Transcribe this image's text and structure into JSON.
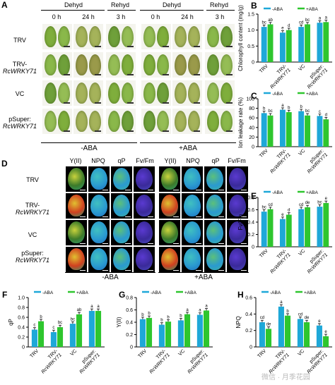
{
  "panels": {
    "A": {
      "label": "A",
      "groups": [
        "Dehyd",
        "Rehyd",
        "Dehyd",
        "Rehyd"
      ],
      "times": [
        "0 h",
        "24 h",
        "3 h",
        "0 h",
        "24 h",
        "3 h"
      ],
      "rows": [
        {
          "line1": "TRV",
          "line2": ""
        },
        {
          "line1": "TRV-",
          "line2": "RcWRKY71"
        },
        {
          "line1": "VC",
          "line2": ""
        },
        {
          "line1": "pSuper:",
          "line2": "RcWRKY71"
        }
      ],
      "conditions": [
        "-ABA",
        "+ABA"
      ]
    },
    "D": {
      "label": "D",
      "params": [
        "Y(II)",
        "NPQ",
        "qP",
        "Fv/Fm",
        "Y(II)",
        "NPQ",
        "qP",
        "Fv/Fm"
      ],
      "rows": [
        {
          "line1": "TRV",
          "line2": ""
        },
        {
          "line1": "TRV-",
          "line2": "RcWRKY71"
        },
        {
          "line1": "VC",
          "line2": ""
        },
        {
          "line1": "pSuper:",
          "line2": "RcWRKY71"
        }
      ],
      "conditions": [
        "-ABA",
        "+ABA"
      ]
    }
  },
  "legend": {
    "minus": "-ABA",
    "plus": "+ABA"
  },
  "colors": {
    "minus": "#1ea8d8",
    "plus": "#2ec62e"
  },
  "x_categories": [
    {
      "l1": "TRV",
      "l2": ""
    },
    {
      "l1": "TRV-",
      "l2": "RcWRKY71"
    },
    {
      "l1": "VC",
      "l2": ""
    },
    {
      "l1": "pSuper:",
      "l2": "RcWRKY71"
    }
  ],
  "watermark": "微信 · 月季花园",
  "chart_data": [
    {
      "panel": "B",
      "type": "bar",
      "categories": [
        "TRV",
        "TRV-RcWRKY71",
        "VC",
        "pSuper:RcWRKY71"
      ],
      "ylabel": "Chlorophyll content (mg/g)",
      "ylim": [
        0,
        1.5
      ],
      "yticks": [
        "0",
        "0.5",
        "1.0",
        "1.5"
      ],
      "tickvals": [
        0,
        0.5,
        1.0,
        1.5
      ],
      "series": [
        {
          "name": "-ABA",
          "values": [
            1.1,
            0.92,
            1.1,
            1.23
          ],
          "letters": [
            "bc",
            "e",
            "cd",
            "a"
          ]
        },
        {
          "name": "+ABA",
          "values": [
            1.18,
            1.0,
            1.18,
            1.25
          ],
          "letters": [
            "ab",
            "d",
            "bc",
            "a"
          ]
        }
      ]
    },
    {
      "panel": "C",
      "type": "bar",
      "categories": [
        "TRV",
        "TRV-RcWRKY71",
        "VC",
        "pSuper:RcWRKY71"
      ],
      "ylabel": "Ion leakage rate (%)",
      "ylim": [
        0,
        100
      ],
      "yticks": [
        "0",
        "20",
        "40",
        "60",
        "80",
        "100"
      ],
      "tickvals": [
        0,
        20,
        40,
        60,
        80,
        100
      ],
      "series": [
        {
          "name": "-ABA",
          "values": [
            70,
            77,
            74,
            64
          ],
          "letters": [
            "b",
            "a",
            "b",
            "c"
          ]
        },
        {
          "name": "+ABA",
          "values": [
            65,
            72,
            65,
            57
          ],
          "letters": [
            "bc",
            "b",
            "bc",
            "d"
          ]
        }
      ]
    },
    {
      "panel": "E",
      "type": "bar",
      "categories": [
        "TRV",
        "TRV-RcWRKY71",
        "VC",
        "pSuper:RcWRKY71"
      ],
      "ylabel": "Fv/Fm",
      "ylim": [
        0,
        0.8
      ],
      "yticks": [
        "0",
        "0.2",
        "0.4",
        "0.6",
        "0.8"
      ],
      "tickvals": [
        0,
        0.2,
        0.4,
        0.6,
        0.8
      ],
      "series": [
        {
          "name": "-ABA",
          "values": [
            0.57,
            0.45,
            0.61,
            0.65
          ],
          "letters": [
            "bc",
            "e",
            "cd",
            "bc"
          ]
        },
        {
          "name": "+ABA",
          "values": [
            0.61,
            0.52,
            0.64,
            0.71
          ],
          "letters": [
            "cd",
            "d",
            "de",
            "e"
          ]
        }
      ]
    },
    {
      "panel": "F",
      "type": "bar",
      "categories": [
        "TRV",
        "TRV-RcWRKY71",
        "VC",
        "pSuper:RcWRKY71"
      ],
      "ylabel": "qP",
      "ylim": [
        0,
        1.0
      ],
      "yticks": [
        "0",
        "0.2",
        "0.4",
        "0.6",
        "0.8",
        "1.0"
      ],
      "tickvals": [
        0,
        0.2,
        0.4,
        0.6,
        0.8,
        1.0
      ],
      "series": [
        {
          "name": "-ABA",
          "values": [
            0.35,
            0.3,
            0.47,
            0.73
          ],
          "letters": [
            "c",
            "c",
            "bc",
            "a"
          ]
        },
        {
          "name": "+ABA",
          "values": [
            0.52,
            0.4,
            0.66,
            0.73
          ],
          "letters": [
            "b",
            "bc",
            "ab",
            "a"
          ]
        }
      ]
    },
    {
      "panel": "G",
      "type": "bar",
      "categories": [
        "TRV",
        "TRV-RcWRKY71",
        "VC",
        "pSuper:RcWRKY71"
      ],
      "ylabel": "Y(II)",
      "ylim": [
        0,
        0.8
      ],
      "yticks": [
        "0",
        "0.2",
        "0.4",
        "0.6",
        "0.8"
      ],
      "tickvals": [
        0,
        0.2,
        0.4,
        0.6,
        0.8
      ],
      "series": [
        {
          "name": "-ABA",
          "values": [
            0.45,
            0.36,
            0.43,
            0.52
          ],
          "letters": [
            "b",
            "b",
            "b",
            "a"
          ]
        },
        {
          "name": "+ABA",
          "values": [
            0.47,
            0.41,
            0.53,
            0.59
          ],
          "letters": [
            "b",
            "b",
            "a",
            "a"
          ]
        }
      ]
    },
    {
      "panel": "H",
      "type": "bar",
      "categories": [
        "TRV",
        "TRV-RcWRKY71",
        "VC",
        "pSuper:RcWRKY71"
      ],
      "ylabel": "NPQ",
      "ylim": [
        0,
        0.6
      ],
      "yticks": [
        "0",
        "0.2",
        "0.4",
        "0.6"
      ],
      "tickvals": [
        0,
        0.2,
        0.4,
        0.6
      ],
      "series": [
        {
          "name": "-ABA",
          "values": [
            0.3,
            0.49,
            0.34,
            0.26
          ],
          "letters": [
            "cd",
            "a",
            "cd",
            "e"
          ]
        },
        {
          "name": "+ABA",
          "values": [
            0.22,
            0.38,
            0.3,
            0.13
          ],
          "letters": [
            "de",
            "b",
            "de",
            "e"
          ]
        }
      ]
    }
  ]
}
